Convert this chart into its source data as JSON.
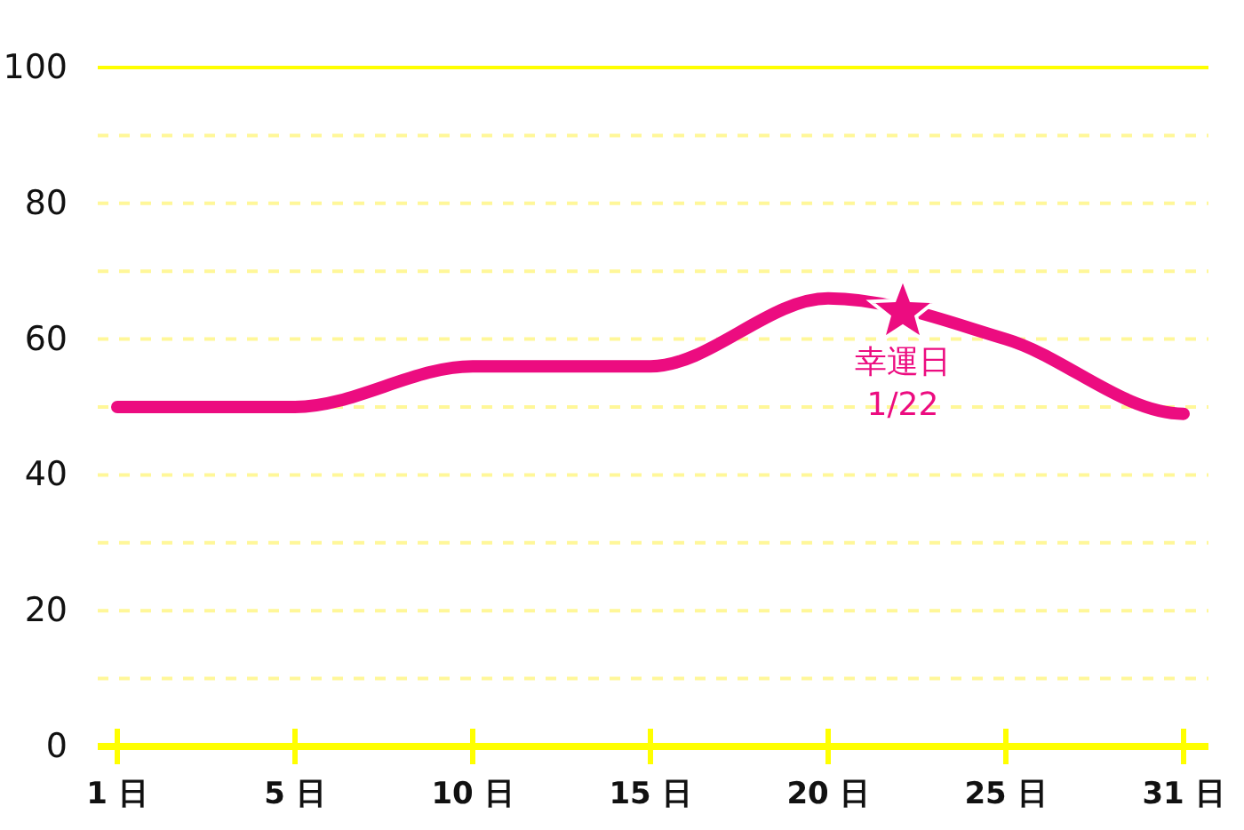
{
  "chart_data": {
    "type": "line",
    "categories": [
      "1 日",
      "5 日",
      "10 日",
      "15 日",
      "20 日",
      "25 日",
      "31 日"
    ],
    "series": [
      {
        "color": "#ec0c80",
        "values": [
          50,
          50,
          56,
          56,
          66,
          60,
          49
        ]
      }
    ],
    "ylim": [
      0,
      100
    ],
    "yticks": [
      0,
      {
        "value": 10,
        "label": null
      },
      20,
      {
        "value": 30,
        "label": null
      },
      40,
      {
        "value": 50,
        "label": null
      },
      60,
      {
        "value": 70,
        "label": null
      },
      80,
      {
        "value": 90,
        "label": null
      },
      100
    ],
    "grid": "y",
    "line_style": "solid",
    "annotations": [
      {
        "text": "幸運日\n1/22",
        "y": 64
      }
    ]
  }
}
